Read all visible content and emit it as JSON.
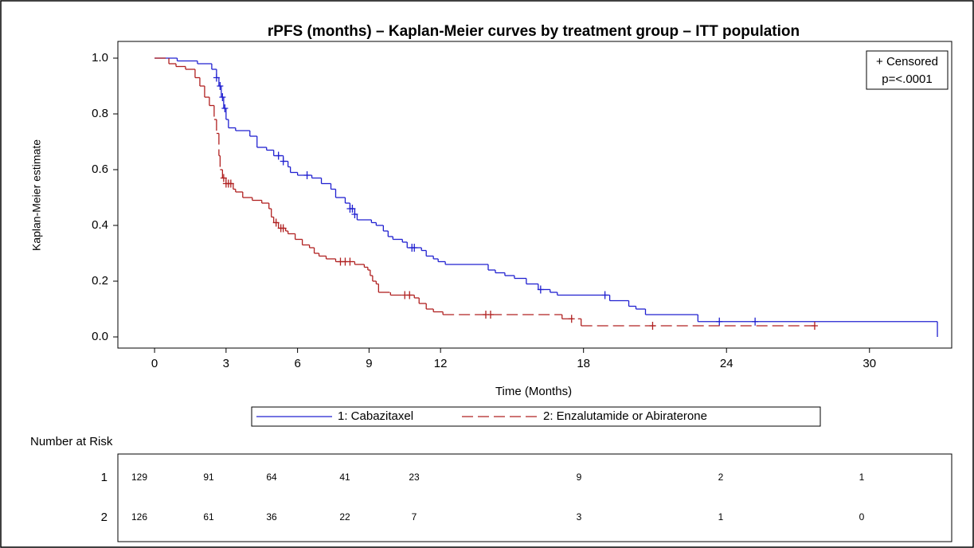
{
  "chart_data": {
    "type": "km",
    "title": "rPFS (months) – Kaplan-Meier curves by treatment group – ITT population",
    "x_label": "Time (Months)",
    "y_label": "Kaplan-Meier estimate",
    "xlim": [
      -1.54,
      33.45
    ],
    "xticks": [
      0,
      3,
      6,
      9,
      12,
      18,
      24,
      30
    ],
    "ylim": [
      -0.04,
      1.06
    ],
    "yticks": [
      {
        "value": 0,
        "label": "0.0"
      },
      0.2,
      0.4,
      0.6,
      0.8,
      {
        "value": 1,
        "label": "1.0"
      }
    ],
    "inset": [
      "+ Censored",
      "p=<.0001"
    ],
    "series": [
      {
        "name": "1: Cabazitaxel",
        "color": "#2020d0",
        "dashed": false,
        "x": [
          0,
          0.95,
          1.8,
          2.4,
          2.6,
          2.7,
          2.8,
          2.9,
          3.0,
          3.1,
          3.4,
          4.0,
          4.3,
          4.7,
          5.0,
          5.4,
          5.6,
          5.7,
          6.0,
          6.6,
          7.0,
          7.4,
          7.6,
          8.0,
          8.2,
          8.4,
          8.5,
          9.1,
          9.3,
          9.6,
          9.8,
          10.0,
          10.4,
          10.6,
          11.2,
          11.4,
          11.7,
          11.9,
          12.2,
          14.0,
          14.3,
          14.7,
          15.1,
          15.6,
          16.1,
          16.6,
          16.9,
          19.1,
          19.9,
          20.2,
          20.6,
          22.8,
          32.85
        ],
        "values": [
          1.0,
          0.99,
          0.98,
          0.96,
          0.93,
          0.9,
          0.86,
          0.82,
          0.78,
          0.75,
          0.74,
          0.72,
          0.68,
          0.67,
          0.65,
          0.63,
          0.61,
          0.59,
          0.58,
          0.57,
          0.55,
          0.53,
          0.5,
          0.48,
          0.46,
          0.44,
          0.42,
          0.41,
          0.4,
          0.38,
          0.36,
          0.35,
          0.34,
          0.32,
          0.31,
          0.29,
          0.28,
          0.27,
          0.26,
          0.24,
          0.23,
          0.22,
          0.21,
          0.19,
          0.17,
          0.16,
          0.15,
          0.13,
          0.11,
          0.1,
          0.08,
          0.055,
          0
        ],
        "censored_x": [
          2.6,
          2.75,
          2.85,
          2.95,
          5.2,
          5.4,
          6.4,
          8.2,
          8.3,
          8.4,
          10.8,
          10.9,
          16.2,
          18.9,
          23.7,
          25.2
        ],
        "censored_y": [
          0.93,
          0.9,
          0.86,
          0.82,
          0.65,
          0.63,
          0.58,
          0.46,
          0.46,
          0.44,
          0.32,
          0.32,
          0.17,
          0.15,
          0.055,
          0.055
        ]
      },
      {
        "name": "2: Enzalutamide or Abiraterone",
        "color": "#b02020",
        "dashed": true,
        "x": [
          0,
          0.6,
          0.9,
          1.3,
          1.7,
          1.9,
          2.1,
          2.3,
          2.5,
          2.6,
          2.7,
          2.75,
          2.85,
          3.0,
          3.3,
          3.4,
          3.7,
          4.1,
          4.5,
          4.8,
          4.9,
          5.0,
          5.2,
          5.5,
          5.6,
          5.9,
          6.2,
          6.5,
          6.7,
          6.9,
          7.2,
          7.6,
          8.4,
          8.8,
          8.95,
          9.05,
          9.15,
          9.3,
          9.4,
          9.9,
          10.9,
          11.1,
          11.4,
          11.7,
          12.1,
          17.1,
          17.9,
          27.8
        ],
        "values": [
          1.0,
          0.98,
          0.97,
          0.96,
          0.93,
          0.9,
          0.86,
          0.83,
          0.78,
          0.73,
          0.65,
          0.6,
          0.57,
          0.55,
          0.53,
          0.52,
          0.5,
          0.49,
          0.48,
          0.46,
          0.43,
          0.41,
          0.39,
          0.38,
          0.37,
          0.35,
          0.33,
          0.32,
          0.3,
          0.29,
          0.28,
          0.27,
          0.26,
          0.25,
          0.24,
          0.22,
          0.2,
          0.19,
          0.16,
          0.15,
          0.14,
          0.12,
          0.1,
          0.09,
          0.08,
          0.065,
          0.04,
          0.04
        ],
        "censored_x": [
          2.9,
          3.0,
          3.1,
          3.2,
          5.1,
          5.3,
          5.4,
          7.8,
          8.0,
          8.2,
          10.5,
          10.7,
          13.9,
          14.1,
          17.5,
          20.9,
          27.7
        ],
        "censored_y": [
          0.57,
          0.55,
          0.55,
          0.55,
          0.41,
          0.39,
          0.39,
          0.27,
          0.27,
          0.27,
          0.15,
          0.15,
          0.08,
          0.08,
          0.065,
          0.04,
          0.04
        ]
      }
    ],
    "risk_table": {
      "title": "Number at Risk",
      "rows": [
        {
          "label": "1",
          "values": [
            "129",
            "91",
            "64",
            "41",
            "23",
            "9",
            "2",
            "1"
          ]
        },
        {
          "label": "2",
          "values": [
            "126",
            "61",
            "36",
            "22",
            "7",
            "3",
            "1",
            "0"
          ]
        }
      ]
    }
  }
}
